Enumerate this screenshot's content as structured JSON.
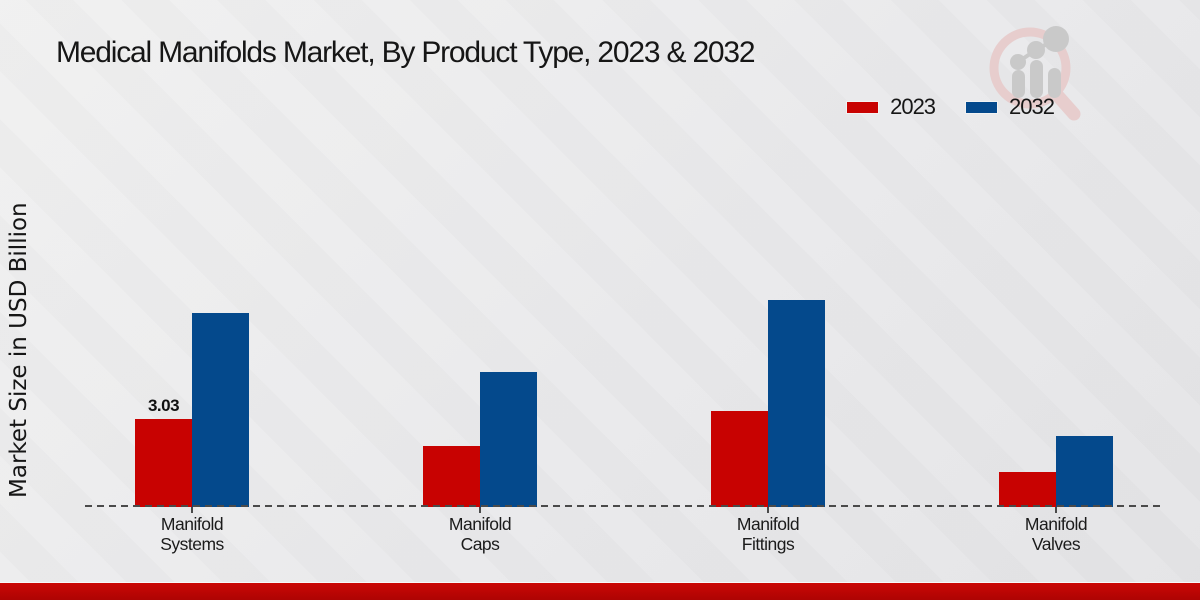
{
  "title": "Medical Manifolds Market, By Product Type, 2023 & 2032",
  "y_axis_label": "Market Size in USD Billion",
  "legend": {
    "items": [
      {
        "label": "2023",
        "color": "#c80201"
      },
      {
        "label": "2032",
        "color": "#04498c"
      }
    ]
  },
  "colors": {
    "bar_2023": "#c80201",
    "bar_2032": "#04498c",
    "baseline": "#4a4a4a",
    "bottom_band": "#c00604",
    "background": "#e9e9eb",
    "watermark_pink": "#e7cdcd",
    "watermark_gray": "#c9c9c9"
  },
  "chart_data": {
    "type": "bar",
    "title": "Medical Manifolds Market, By Product Type, 2023 & 2032",
    "xlabel": "",
    "ylabel": "Market Size in USD Billion",
    "categories": [
      "Manifold Systems",
      "Manifold Caps",
      "Manifold Fittings",
      "Manifold Valves"
    ],
    "category_label_lines": [
      [
        "Manifold",
        "Systems"
      ],
      [
        "Manifold",
        "Caps"
      ],
      [
        "Manifold",
        "Fittings"
      ],
      [
        "Manifold",
        "Valves"
      ]
    ],
    "series": [
      {
        "name": "2023",
        "color": "#c80201",
        "values": [
          3.03,
          2.1,
          3.3,
          1.2
        ]
      },
      {
        "name": "2032",
        "color": "#04498c",
        "values": [
          6.7,
          4.65,
          7.15,
          2.45
        ]
      }
    ],
    "data_labels": [
      {
        "series_index": 0,
        "category_index": 0,
        "text": "3.03"
      }
    ],
    "ylim": [
      0,
      7.5
    ],
    "grid": false,
    "y_axis_ticks_visible": false,
    "legend_position": "top-right",
    "baseline_style": "dashed"
  }
}
